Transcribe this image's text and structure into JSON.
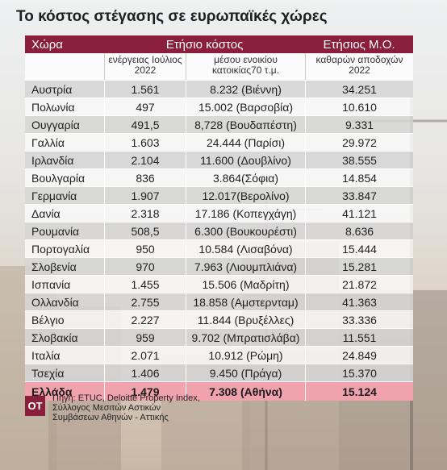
{
  "title": "Το κόστος στέγασης σε ευρωπαϊκές χώρες",
  "table": {
    "header_country": "Χώρα",
    "header_annual_cost": "Ετήσιο κόστος",
    "header_annual_avg": "Ετήσιος Μ.Ο.",
    "sub_energy": "ενέργειας Ιούλιος 2022",
    "sub_rent": "μέσου ενοικίου κατοικίας70 τ.μ.",
    "sub_net_pay": "καθαρών αποδοχών 2022",
    "rows": [
      {
        "country": "Αυστρία",
        "energy": "1.561",
        "rent": "8.232 (Βιέννη)",
        "net": "34.251"
      },
      {
        "country": "Πολωνία",
        "energy": "497",
        "rent": "15.002 (Βαρσοβία)",
        "net": "10.610"
      },
      {
        "country": "Ουγγαρία",
        "energy": "491,5",
        "rent": "8,728 (Βουδαπέστη)",
        "net": "9.331"
      },
      {
        "country": "Γαλλία",
        "energy": "1.603",
        "rent": "24.444 (Παρίσι)",
        "net": "29.972"
      },
      {
        "country": "Ιρλανδία",
        "energy": "2.104",
        "rent": "11.600 (Δουβλίνο)",
        "net": "38.555"
      },
      {
        "country": "Βουλγαρία",
        "energy": "836",
        "rent": "3.864(Σόφια)",
        "net": "14.854"
      },
      {
        "country": "Γερμανία",
        "energy": "1.907",
        "rent": "12.017(Βερολίνο)",
        "net": "33.847"
      },
      {
        "country": "Δανία",
        "energy": "2.318",
        "rent": "17.186 (Κοπεγχάγη)",
        "net": "41.121"
      },
      {
        "country": "Ρουμανία",
        "energy": "508,5",
        "rent": "6.300 (Βουκουρέστι)",
        "net": "8.636"
      },
      {
        "country": "Πορτογαλία",
        "energy": "950",
        "rent": "10.584 (Λισαβόνα)",
        "net": "15.444"
      },
      {
        "country": "Σλοβενία",
        "energy": "970",
        "rent": "7.963 (Λιουμπλιάνα)",
        "net": "15.281"
      },
      {
        "country": "Ισπανία",
        "energy": "1.455",
        "rent": "15.506 (Μαδρίτη)",
        "net": "21.872"
      },
      {
        "country": "Ολλανδία",
        "energy": "2.755",
        "rent": "18.858 (Αμστερνταμ)",
        "net": "41.363"
      },
      {
        "country": "Βέλγιο",
        "energy": "2.227",
        "rent": "11.844 (Βρυξέλλες)",
        "net": "33.336"
      },
      {
        "country": "Σλοβακία",
        "energy": "959",
        "rent": "9.702 (Μπρατισλάβα)",
        "net": "11.551"
      },
      {
        "country": "Ιταλία",
        "energy": "2.071",
        "rent": "10.912 (Ρώμη)",
        "net": "24.849"
      },
      {
        "country": "Τσεχία",
        "energy": "1.406",
        "rent": "9.450 (Πράγα)",
        "net": "15.370"
      }
    ],
    "greece": {
      "country": "Ελλάδα",
      "energy": "1.479",
      "rent": "7.308 (Αθήνα)",
      "net": "15.124"
    }
  },
  "source": {
    "logo": "OT",
    "line1": "Πηγή: ETUC, Deloitte Property Index,",
    "line2": "Σύλλογος Μεσιτών Αστικών",
    "line3": "Συμβάσεων Αθηνών - Αττικής"
  },
  "colors": {
    "header": "#8a1f3c",
    "highlight": "#f1a3ad"
  }
}
